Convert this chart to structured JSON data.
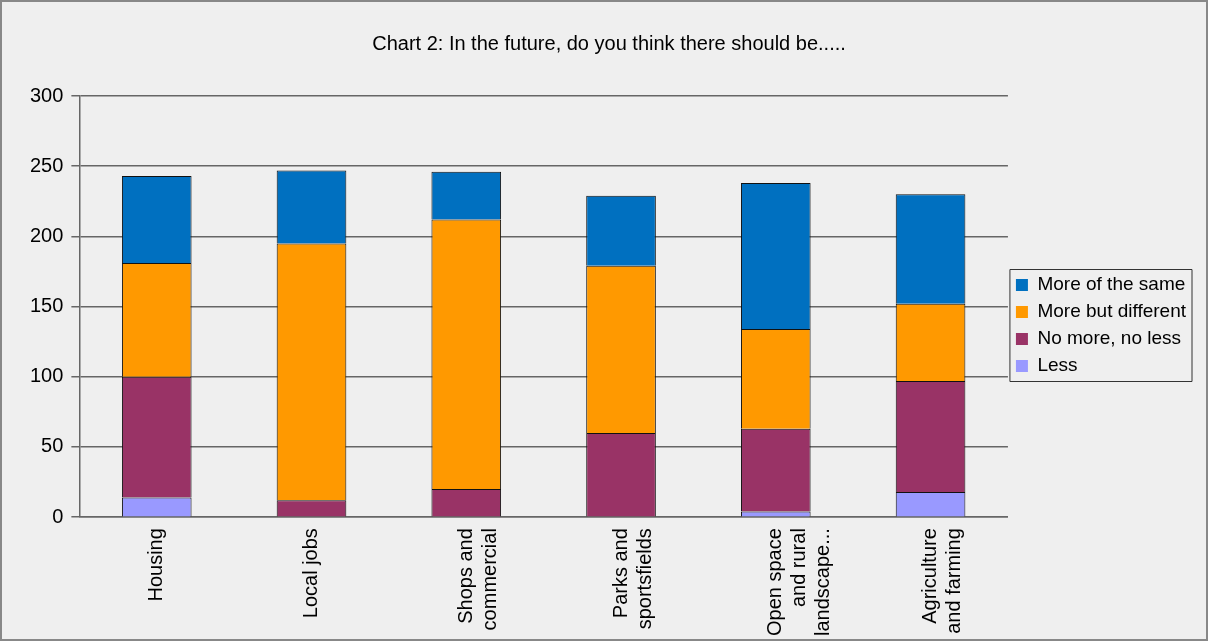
{
  "chart_data": {
    "type": "bar",
    "title": "Chart 2: In the future, do you think there should be.....",
    "categories": [
      "Housing",
      "Local jobs",
      "Shops and commercial",
      "Parks and sportsfields",
      "Open space and rural landscape...",
      "Agriculture and farming"
    ],
    "stacked": true,
    "ylim": [
      0,
      300
    ],
    "yticks": [
      0,
      50,
      100,
      150,
      200,
      250,
      300
    ],
    "grid": "y",
    "legend": "right",
    "series": [
      {
        "name": "Less",
        "color": "#9999ff",
        "values": [
          14,
          0,
          0,
          0,
          4,
          18
        ]
      },
      {
        "name": "No more, no less",
        "color": "#993366",
        "values": [
          86,
          12,
          20,
          60,
          59,
          79
        ]
      },
      {
        "name": "More but different",
        "color": "#ff9900",
        "values": [
          81,
          183,
          192,
          119,
          71,
          55
        ]
      },
      {
        "name": "More of the same",
        "color": "#0070c0",
        "values": [
          62,
          52,
          34,
          50,
          104,
          78
        ]
      }
    ]
  }
}
